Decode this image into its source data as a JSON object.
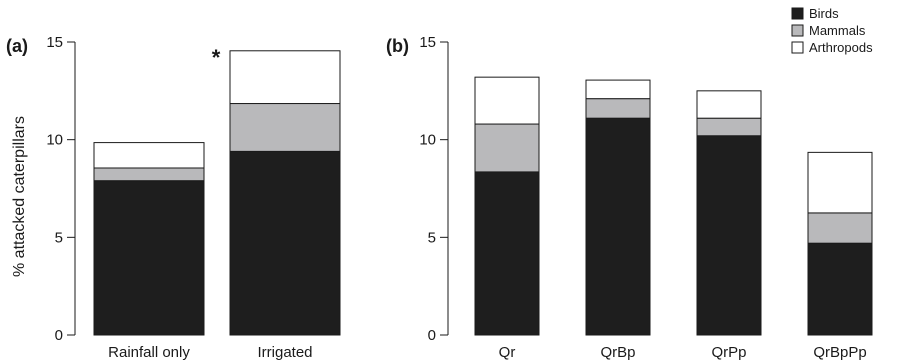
{
  "colors": {
    "birds": "#1e1e1e",
    "mammals": "#b9b9bb",
    "arthropods": "#ffffff",
    "stroke": "#1a1a1a"
  },
  "legend": {
    "position": "top-right",
    "entries": [
      "Birds",
      "Mammals",
      "Arthropods"
    ]
  },
  "chart_data": [
    {
      "type": "bar",
      "stacked": true,
      "panel_label": "(a)",
      "ylabel": "% attacked caterpillars",
      "ylim": [
        0,
        15
      ],
      "yticks": [
        "0",
        "5",
        "10",
        "15"
      ],
      "categories": [
        "Rainfall only",
        "Irrigated"
      ],
      "series": [
        {
          "name": "Birds",
          "values": [
            7.9,
            9.4
          ]
        },
        {
          "name": "Mammals",
          "values": [
            0.65,
            2.45
          ]
        },
        {
          "name": "Arthropods",
          "values": [
            1.3,
            2.7
          ]
        }
      ],
      "annotations": [
        {
          "text": "*",
          "category": "Irrigated"
        }
      ]
    },
    {
      "type": "bar",
      "stacked": true,
      "panel_label": "(b)",
      "ylabel": "",
      "ylim": [
        0,
        15
      ],
      "yticks": [
        "0",
        "5",
        "10",
        "15"
      ],
      "categories": [
        "Qr",
        "QrBp",
        "QrPp",
        "QrBpPp"
      ],
      "series": [
        {
          "name": "Birds",
          "values": [
            8.35,
            11.1,
            10.2,
            4.7
          ]
        },
        {
          "name": "Mammals",
          "values": [
            2.45,
            1.0,
            0.9,
            1.55
          ]
        },
        {
          "name": "Arthropods",
          "values": [
            2.4,
            0.95,
            1.4,
            3.1
          ]
        }
      ]
    }
  ]
}
